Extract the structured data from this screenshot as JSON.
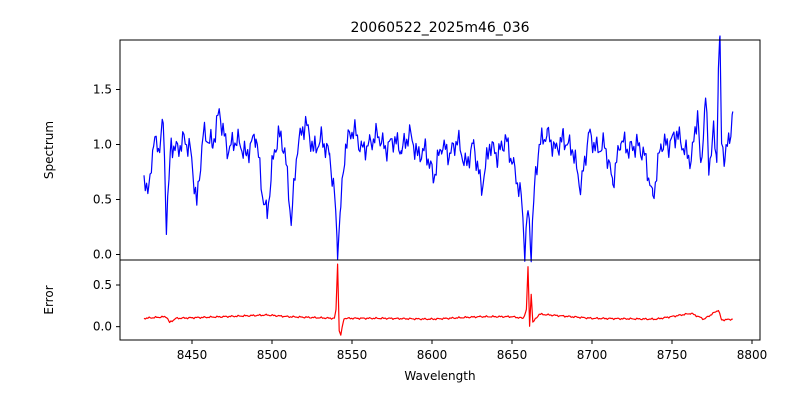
{
  "chart_data": {
    "type": "line",
    "title": "20060522_2025m46_036",
    "xlabel": "Wavelength",
    "x_ticks": [
      8450,
      8500,
      8550,
      8600,
      8650,
      8700,
      8750,
      8800
    ],
    "xlim": [
      8405,
      8805
    ],
    "grid": false,
    "panels": [
      {
        "name": "spectrum",
        "ylabel": "Spectrum",
        "ylim": [
          -0.05,
          1.95
        ],
        "y_ticks": [
          0.0,
          0.5,
          1.0,
          1.5
        ],
        "y_tick_labels": [
          "0.0",
          "0.5",
          "1.0",
          "1.5"
        ],
        "color": "#0000ff",
        "anchors": [
          [
            8420,
            0.72
          ],
          [
            8423,
            0.55
          ],
          [
            8426,
            1.05
          ],
          [
            8429,
            0.95
          ],
          [
            8432,
            1.2
          ],
          [
            8434,
            0.3
          ],
          [
            8437,
            1.0
          ],
          [
            8441,
            0.95
          ],
          [
            8445,
            1.05
          ],
          [
            8449,
            0.95
          ],
          [
            8453,
            0.45
          ],
          [
            8457,
            1.1
          ],
          [
            8463,
            1.0
          ],
          [
            8467,
            1.3
          ],
          [
            8472,
            0.95
          ],
          [
            8478,
            1.05
          ],
          [
            8484,
            0.9
          ],
          [
            8490,
            1.1
          ],
          [
            8494,
            0.55
          ],
          [
            8497,
            0.35
          ],
          [
            8500,
            0.8
          ],
          [
            8504,
            1.1
          ],
          [
            8508,
            0.95
          ],
          [
            8512,
            0.3
          ],
          [
            8516,
            1.0
          ],
          [
            8521,
            1.2
          ],
          [
            8526,
            0.95
          ],
          [
            8531,
            1.05
          ],
          [
            8536,
            0.9
          ],
          [
            8539,
            0.55
          ],
          [
            8541,
            0.05
          ],
          [
            8543,
            0.45
          ],
          [
            8546,
            1.0
          ],
          [
            8551,
            1.15
          ],
          [
            8556,
            0.95
          ],
          [
            8561,
            1.0
          ],
          [
            8566,
            1.1
          ],
          [
            8571,
            0.95
          ],
          [
            8576,
            1.05
          ],
          [
            8581,
            0.95
          ],
          [
            8586,
            1.1
          ],
          [
            8591,
            0.9
          ],
          [
            8596,
            0.95
          ],
          [
            8601,
            0.7
          ],
          [
            8606,
            1.0
          ],
          [
            8611,
            0.9
          ],
          [
            8616,
            1.05
          ],
          [
            8621,
            0.8
          ],
          [
            8626,
            1.0
          ],
          [
            8631,
            0.6
          ],
          [
            8636,
            1.0
          ],
          [
            8641,
            0.9
          ],
          [
            8646,
            1.05
          ],
          [
            8651,
            0.8
          ],
          [
            8656,
            0.5
          ],
          [
            8658,
            0.05
          ],
          [
            8660,
            0.4
          ],
          [
            8662,
            0.05
          ],
          [
            8664,
            0.6
          ],
          [
            8667,
            1.0
          ],
          [
            8672,
            1.1
          ],
          [
            8677,
            0.95
          ],
          [
            8682,
            1.05
          ],
          [
            8688,
            0.95
          ],
          [
            8693,
            0.6
          ],
          [
            8698,
            1.1
          ],
          [
            8703,
            0.95
          ],
          [
            8708,
            1.0
          ],
          [
            8713,
            0.65
          ],
          [
            8718,
            1.05
          ],
          [
            8723,
            0.95
          ],
          [
            8728,
            1.0
          ],
          [
            8733,
            0.9
          ],
          [
            8738,
            0.5
          ],
          [
            8743,
            1.0
          ],
          [
            8748,
            1.0
          ],
          [
            8753,
            1.1
          ],
          [
            8758,
            0.95
          ],
          [
            8762,
            0.85
          ],
          [
            8766,
            1.3
          ],
          [
            8768,
            0.75
          ],
          [
            8771,
            1.45
          ],
          [
            8773,
            0.8
          ],
          [
            8776,
            1.1
          ],
          [
            8778,
            0.85
          ],
          [
            8779,
            1.75
          ],
          [
            8780,
            1.9
          ],
          [
            8781,
            1.0
          ],
          [
            8783,
            0.9
          ],
          [
            8786,
            1.05
          ],
          [
            8788,
            1.3
          ]
        ]
      },
      {
        "name": "error",
        "ylabel": "Error",
        "ylim": [
          -0.16,
          0.8
        ],
        "y_ticks": [
          0.0,
          0.5
        ],
        "y_tick_labels": [
          "0.0",
          "0.5"
        ],
        "color": "#ff0000",
        "anchors": [
          [
            8420,
            0.1
          ],
          [
            8434,
            0.12
          ],
          [
            8436,
            0.05
          ],
          [
            8440,
            0.1
          ],
          [
            8470,
            0.12
          ],
          [
            8497,
            0.14
          ],
          [
            8510,
            0.12
          ],
          [
            8539,
            0.1
          ],
          [
            8540,
            0.2
          ],
          [
            8541,
            0.76
          ],
          [
            8542,
            -0.05
          ],
          [
            8543,
            -0.1
          ],
          [
            8545,
            0.1
          ],
          [
            8570,
            0.1
          ],
          [
            8600,
            0.09
          ],
          [
            8630,
            0.12
          ],
          [
            8650,
            0.12
          ],
          [
            8657,
            0.1
          ],
          [
            8659,
            0.2
          ],
          [
            8660,
            0.72
          ],
          [
            8661,
            0.0
          ],
          [
            8662,
            0.4
          ],
          [
            8663,
            0.05
          ],
          [
            8667,
            0.15
          ],
          [
            8700,
            0.1
          ],
          [
            8740,
            0.09
          ],
          [
            8762,
            0.16
          ],
          [
            8770,
            0.09
          ],
          [
            8779,
            0.2
          ],
          [
            8781,
            0.08
          ],
          [
            8788,
            0.09
          ]
        ]
      }
    ]
  }
}
